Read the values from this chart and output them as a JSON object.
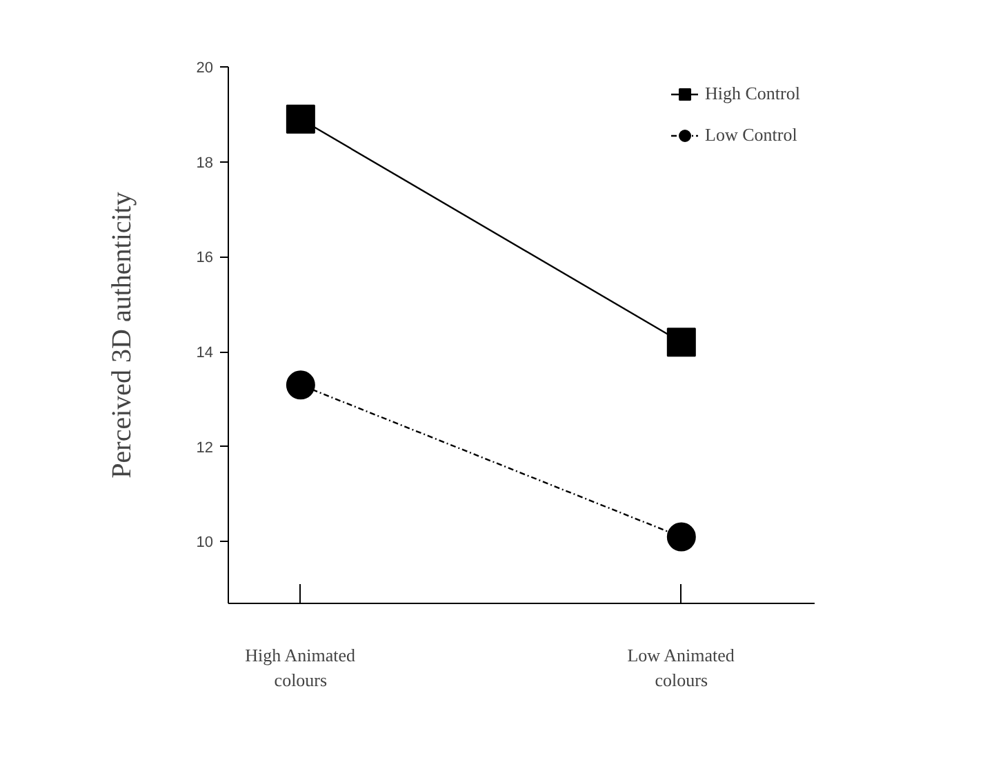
{
  "chart_data": {
    "type": "line",
    "ylabel": "Perceived 3D authenticity",
    "categories": [
      "High Animated\ncolours",
      "Low Animated\ncolours"
    ],
    "series": [
      {
        "name": "High Control",
        "color": "#000000",
        "values": [
          18.9,
          14.2
        ],
        "marker": "square",
        "line_style": "solid"
      },
      {
        "name": "Low Control",
        "color": "#000000",
        "values": [
          13.3,
          10.1
        ],
        "marker": "circle",
        "line_style": "dashdot"
      }
    ],
    "ylim": [
      8.7,
      20
    ],
    "yticks": [
      10,
      12,
      14,
      16,
      18,
      20
    ],
    "grid": false,
    "legend": "top right"
  }
}
